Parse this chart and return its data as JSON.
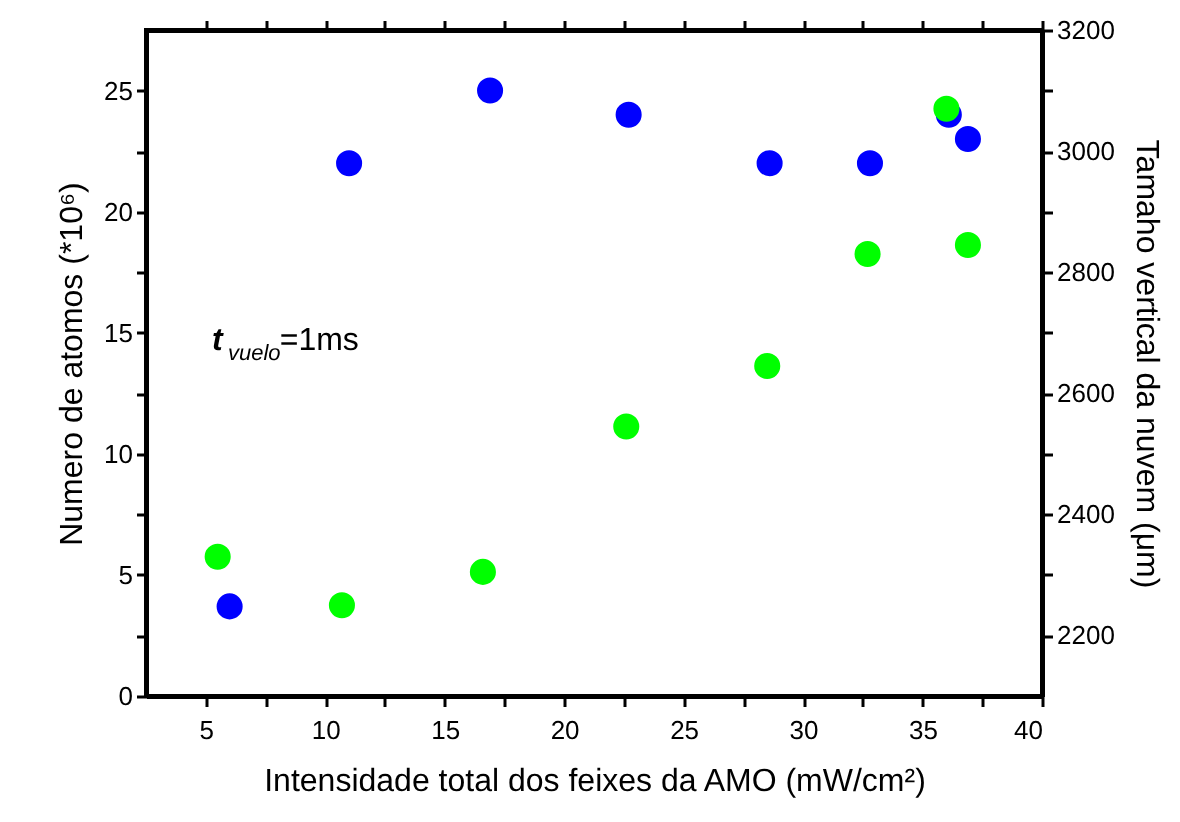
{
  "chart_data": {
    "type": "scatter",
    "xlabel": "Intensidade total dos feixes da AMO (mW/cm²)",
    "ylabel": "Numero de atomos (*10⁶)",
    "y2label": "Tamaho vertical da nuvem (μm)",
    "annotations": [
      "t$_{vuelo}$=1ms"
    ],
    "xlim": [
      2.5,
      40
    ],
    "xticks": [
      5,
      {
        "value": 7.5,
        "label": null
      },
      10,
      {
        "value": 12.5,
        "label": null
      },
      15,
      {
        "value": 17.5,
        "label": null
      },
      20,
      {
        "value": 22.5,
        "label": null
      },
      25,
      {
        "value": 27.5,
        "label": null
      },
      30,
      {
        "value": 32.5,
        "label": null
      },
      35,
      {
        "value": 37.5,
        "label": null
      },
      40
    ],
    "ylim": [
      0,
      27.5
    ],
    "yticks": [
      0,
      {
        "value": 2.5,
        "label": null
      },
      5,
      {
        "value": 7.5,
        "label": null
      },
      10,
      {
        "value": 12.5,
        "label": null
      },
      15,
      {
        "value": 17.5,
        "label": null
      },
      20,
      {
        "value": 22.5,
        "label": null
      },
      25
    ],
    "y2lim": [
      2100,
      3200
    ],
    "y2ticks": [
      2200,
      {
        "value": 2300,
        "label": null
      },
      2400,
      {
        "value": 2500,
        "label": null
      },
      2600,
      {
        "value": 2700,
        "label": null
      },
      2800,
      {
        "value": 2900,
        "label": null
      },
      3000,
      {
        "value": 3100,
        "label": null
      },
      3200
    ],
    "marker": "circle",
    "series": [
      {
        "color": "#0000ff",
        "x": [
          6.0,
          11.0,
          16.9,
          22.7,
          28.6,
          32.8,
          36.1,
          36.9
        ],
        "values": [
          3.7,
          22,
          25,
          24,
          22,
          22,
          24,
          23
        ]
      },
      {
        "color": "#00ff00",
        "axis": "y2",
        "x": [
          5.5,
          10.7,
          16.6,
          22.6,
          28.5,
          32.7,
          36.0,
          36.9
        ],
        "values": [
          2330,
          2250,
          2305,
          2545,
          2645,
          2830,
          3070,
          2845
        ]
      }
    ]
  }
}
